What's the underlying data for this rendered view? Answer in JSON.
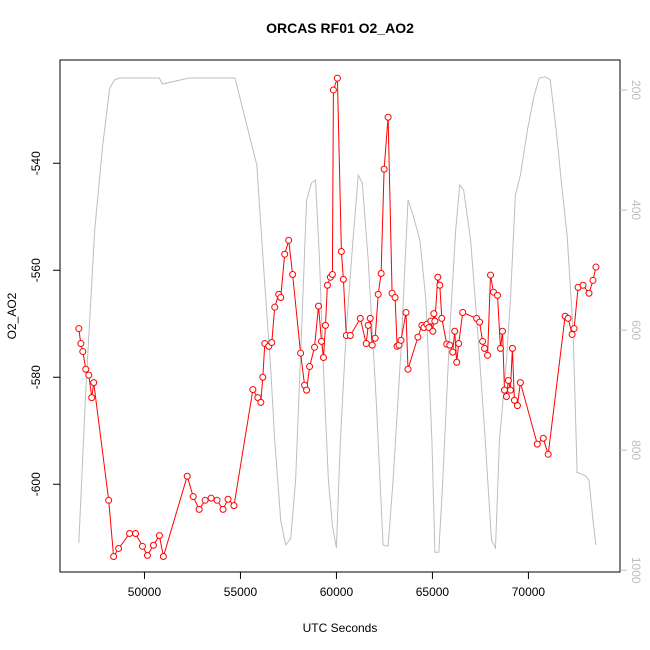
{
  "chart_data": {
    "type": "line",
    "title": "ORCAS RF01 O2_AO2",
    "x_label": "UTC Seconds",
    "y_label": "O2_AO2",
    "xlim": [
      45600,
      74770
    ],
    "xticks": [
      50000,
      55000,
      60000,
      65000,
      70000
    ],
    "ylim": [
      -616.4,
      -520.7
    ],
    "yticks": [
      -600,
      -580,
      -560,
      -540
    ],
    "y2lim": [
      1003,
      150
    ],
    "y2ticks": [
      200,
      400,
      600,
      800,
      1000
    ],
    "series": [
      {
        "color": "#ff0000",
        "markers": true,
        "x": [
          46581,
          46685,
          46788,
          46944,
          47099,
          47254,
          47358,
          48135,
          48394,
          48653,
          49223,
          49534,
          49896,
          50155,
          50466,
          50777,
          50984,
          52227,
          52538,
          52849,
          53160,
          53471,
          53781,
          54092,
          54351,
          54662,
          55646,
          55905,
          56061,
          56164,
          56268,
          56475,
          56630,
          56786,
          56993,
          57097,
          57304,
          57511,
          57718,
          58133,
          58340,
          58443,
          58599,
          58858,
          59065,
          59220,
          59324,
          59428,
          59531,
          59687,
          59790,
          59842,
          60049,
          60256,
          60360,
          60515,
          60723,
          61241,
          61551,
          61655,
          61759,
          61862,
          62018,
          62173,
          62328,
          62484,
          62691,
          62898,
          63054,
          63157,
          63261,
          63364,
          63623,
          63727,
          64245,
          64452,
          64556,
          64711,
          64815,
          64918,
          65022,
          65074,
          65126,
          65281,
          65385,
          65488,
          65747,
          65903,
          66058,
          66162,
          66265,
          66369,
          66576,
          67301,
          67457,
          67612,
          67716,
          67871,
          68026,
          68182,
          68389,
          68545,
          68648,
          68752,
          68856,
          68959,
          69063,
          69167,
          69270,
          69426,
          69581,
          70462,
          70772,
          71031,
          71912,
          72067,
          72274,
          72378,
          72585,
          72844,
          73155,
          73362,
          73517
        ],
        "values": [
          -570.9,
          -573.7,
          -575.2,
          -578.5,
          -579.6,
          -583.8,
          -581.0,
          -603.0,
          -613.5,
          -612.0,
          -609.2,
          -609.2,
          -611.6,
          -613.3,
          -611.4,
          -609.6,
          -613.5,
          -598.5,
          -602.3,
          -604.7,
          -603.0,
          -602.6,
          -603.0,
          -604.7,
          -602.8,
          -604.0,
          -582.3,
          -583.8,
          -584.7,
          -580.0,
          -573.7,
          -574.2,
          -573.5,
          -566.9,
          -564.5,
          -565.1,
          -557.0,
          -554.4,
          -560.8,
          -575.5,
          -581.5,
          -582.4,
          -578.0,
          -574.4,
          -566.7,
          -573.3,
          -576.3,
          -570.3,
          -562.8,
          -561.3,
          -560.8,
          -526.3,
          -524.1,
          -556.5,
          -561.7,
          -572.2,
          -572.2,
          -569.0,
          -573.7,
          -570.3,
          -569.0,
          -574.0,
          -572.7,
          -564.5,
          -560.6,
          -541.1,
          -531.4,
          -564.3,
          -565.1,
          -574.2,
          -574.0,
          -573.1,
          -567.9,
          -578.5,
          -572.5,
          -570.3,
          -570.7,
          -570.1,
          -570.7,
          -569.5,
          -571.4,
          -568.1,
          -569.5,
          -561.3,
          -562.8,
          -569.0,
          -573.8,
          -574.0,
          -575.3,
          -571.4,
          -577.2,
          -573.7,
          -567.9,
          -569.0,
          -569.7,
          -573.3,
          -574.6,
          -575.9,
          -560.9,
          -564.1,
          -564.7,
          -574.6,
          -571.4,
          -582.4,
          -583.6,
          -580.6,
          -582.4,
          -574.6,
          -584.3,
          -585.3,
          -581.0,
          -592.5,
          -591.4,
          -594.4,
          -568.6,
          -569.0,
          -572.0,
          -570.9,
          -563.2,
          -562.8,
          -564.3,
          -561.9,
          -559.4
        ]
      },
      {
        "color": "#bebebe",
        "axis": "y2",
        "markers": false,
        "x": [
          46581,
          46944,
          47410,
          47824,
          48187,
          48446,
          48705,
          50777,
          50932,
          52331,
          54714,
          55853,
          56216,
          56579,
          56786,
          57097,
          57356,
          57615,
          57874,
          58185,
          58443,
          58702,
          58910,
          59117,
          59324,
          59583,
          59790,
          59997,
          60204,
          60515,
          60878,
          61137,
          61344,
          61655,
          62069,
          62432,
          62691,
          62950,
          63364,
          63727,
          63986,
          64349,
          64659,
          64970,
          65126,
          65333,
          65540,
          65903,
          66213,
          66421,
          66628,
          66990,
          67353,
          67716,
          68079,
          68286,
          68493,
          68856,
          69063,
          69322,
          69581,
          69944,
          70307,
          70566,
          70877,
          71136,
          71447,
          71757,
          72016,
          72327,
          72534,
          72948,
          73155,
          73362,
          73517
        ],
        "values": [
          955,
          700,
          433,
          292,
          197,
          183,
          180,
          180,
          190,
          180,
          180,
          325,
          500,
          667,
          783,
          917,
          958,
          947,
          850,
          600,
          383,
          355,
          350,
          483,
          667,
          850,
          925,
          963,
          783,
          600,
          442,
          342,
          355,
          483,
          717,
          958,
          960,
          850,
          633,
          383,
          408,
          450,
          550,
          783,
          970,
          970,
          850,
          600,
          433,
          358,
          367,
          450,
          600,
          767,
          950,
          963,
          783,
          650,
          550,
          375,
          342,
          267,
          208,
          180,
          178,
          183,
          267,
          367,
          442,
          600,
          837,
          842,
          850,
          917,
          958
        ]
      }
    ]
  }
}
